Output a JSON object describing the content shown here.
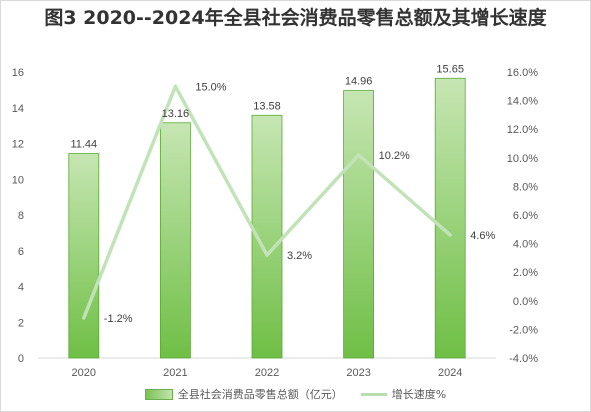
{
  "title": "图3  2020--2024年全县社会消费品零售总额及其增长速度",
  "legend": {
    "bar_label": "全县社会消费品零售总额（亿元）",
    "line_label": "增长速度%"
  },
  "colors": {
    "bar_top": "#c6e6b3",
    "bar_bottom": "#6fbf45",
    "bar_border": "#5aa935",
    "line": "#c2e2b8",
    "axis": "#d9d9d9"
  },
  "chart_data": {
    "type": "bar",
    "categories": [
      "2020",
      "2021",
      "2022",
      "2023",
      "2024"
    ],
    "series": [
      {
        "name": "全县社会消费品零售总额（亿元）",
        "type": "bar",
        "axis": "left",
        "values": [
          11.44,
          13.16,
          13.58,
          14.96,
          15.65
        ],
        "labels": [
          "11.44",
          "13.16",
          "13.58",
          "14.96",
          "15.65"
        ]
      },
      {
        "name": "增长速度%",
        "type": "line",
        "axis": "right",
        "values": [
          -1.2,
          15.0,
          3.2,
          10.2,
          4.6
        ],
        "labels": [
          "-1.2%",
          "15.0%",
          "3.2%",
          "10.2%",
          "4.6%"
        ]
      }
    ],
    "y_left": {
      "range": [
        0,
        16
      ],
      "ticks": [
        "0",
        "2",
        "4",
        "6",
        "8",
        "10",
        "12",
        "14",
        "16"
      ]
    },
    "y_right": {
      "range": [
        -4,
        16
      ],
      "ticks": [
        "-4.0%",
        "-2.0%",
        "0.0%",
        "2.0%",
        "4.0%",
        "6.0%",
        "8.0%",
        "10.0%",
        "12.0%",
        "14.0%",
        "16.0%"
      ]
    },
    "grid": false,
    "legend_position": "bottom"
  }
}
